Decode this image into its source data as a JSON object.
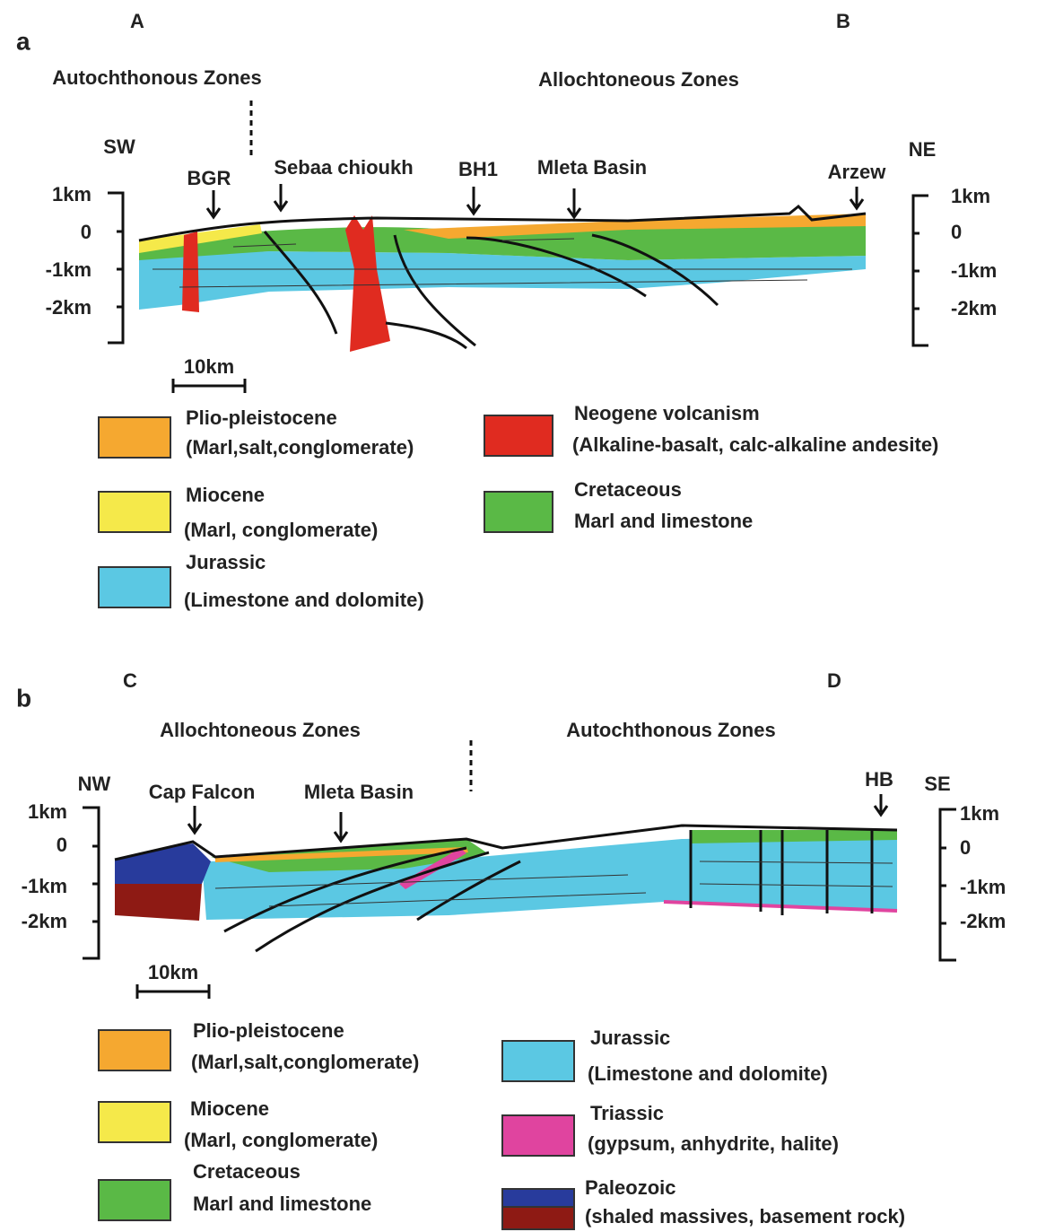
{
  "panels": [
    {
      "label": "a",
      "left_end": "A",
      "right_end": "B",
      "left_zone": "Autochthonous Zones",
      "right_zone": "Allochtoneous Zones",
      "left_dir": "SW",
      "right_dir": "NE",
      "locations": [
        "BGR",
        "Sebaa chioukh",
        "BH1",
        "Mleta Basin",
        "Arzew"
      ],
      "left_scale": [
        "1km",
        "0",
        "-1km",
        "-2km"
      ],
      "right_scale": [
        "1km",
        "0",
        "-1km",
        "-2km"
      ],
      "scale_bar": "10km",
      "legend": [
        {
          "name": "Plio-pleistocene",
          "desc": "(Marl,salt,conglomerate)"
        },
        {
          "name": "Miocene",
          "desc": "(Marl, conglomerate)"
        },
        {
          "name": "Jurassic",
          "desc": "(Limestone and dolomite)"
        },
        {
          "name": "Neogene volcanism",
          "desc": "(Alkaline-basalt, calc-alkaline andesite)"
        },
        {
          "name": "Cretaceous",
          "desc": "Marl and limestone"
        }
      ]
    },
    {
      "label": "b",
      "left_end": "C",
      "right_end": "D",
      "left_zone": "Allochtoneous Zones",
      "right_zone": "Autochthonous Zones",
      "left_dir": "NW",
      "right_dir": "SE",
      "locations": [
        "Cap Falcon",
        "Mleta Basin",
        "HB"
      ],
      "left_scale": [
        "1km",
        "0",
        "-1km",
        "-2km"
      ],
      "right_scale": [
        "1km",
        "0",
        "-1km",
        "-2km"
      ],
      "scale_bar": "10km",
      "legend": [
        {
          "name": "Plio-pleistocene",
          "desc": "(Marl,salt,conglomerate)"
        },
        {
          "name": "Miocene",
          "desc": "(Marl, conglomerate)"
        },
        {
          "name": "Cretaceous",
          "desc": "Marl and limestone"
        },
        {
          "name": "Jurassic",
          "desc": "(Limestone and dolomite)"
        },
        {
          "name": "Triassic",
          "desc": "(gypsum, anhydrite, halite)"
        },
        {
          "name": "Paleozoic",
          "desc": "(shaled massives, basement rock)"
        }
      ]
    }
  ]
}
